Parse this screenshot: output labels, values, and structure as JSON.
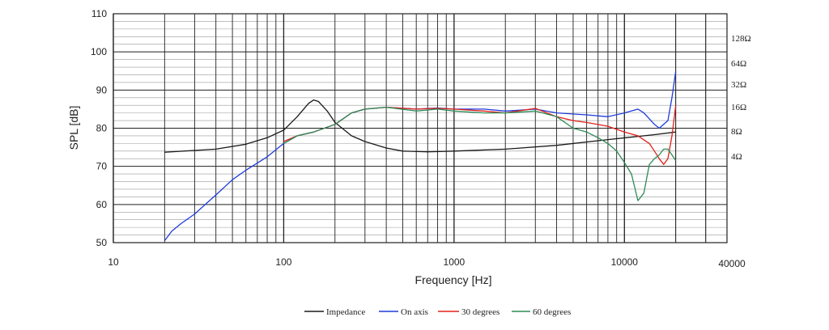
{
  "chart_data": {
    "type": "line",
    "xlabel": "Frequency [Hz]",
    "ylabel": "SPL [dB]",
    "xscale": "log",
    "xlim": [
      10,
      40000
    ],
    "ylim": [
      50,
      110
    ],
    "x_ticks": [
      "10",
      "100",
      "1000",
      "10000",
      "40000"
    ],
    "y_ticks": [
      "50",
      "60",
      "70",
      "80",
      "90",
      "100",
      "110"
    ],
    "right_axis_labels": [
      "128Ω",
      "64Ω",
      "32Ω",
      "16Ω",
      "8Ω",
      "4Ω"
    ],
    "grid": true,
    "legend_position": "bottom",
    "colors": {
      "Impedance": "#1a1a1a",
      "On axis": "#1f3cdb",
      "30 degrees": "#e0201a",
      "60 degrees": "#2e8b57"
    },
    "series": [
      {
        "name": "Impedance",
        "x": [
          20,
          40,
          60,
          80,
          100,
          120,
          140,
          150,
          160,
          180,
          200,
          250,
          300,
          400,
          500,
          700,
          1000,
          2000,
          4000,
          8000,
          15000,
          20000
        ],
        "y": [
          73.7,
          74.5,
          75.8,
          77.5,
          79.5,
          83,
          86.5,
          87.4,
          87,
          84.5,
          81.5,
          78,
          76.5,
          74.8,
          74,
          73.8,
          74,
          74.5,
          75.5,
          77,
          78.3,
          79
        ]
      },
      {
        "name": "On axis",
        "x": [
          20,
          22,
          25,
          30,
          40,
          50,
          60,
          80,
          100,
          120,
          150,
          200,
          250,
          300,
          400,
          600,
          800,
          1000,
          1500,
          2000,
          3000,
          4000,
          6000,
          8000,
          10000,
          12000,
          13000,
          15000,
          16000,
          18000,
          19000,
          20000
        ],
        "y": [
          50.5,
          53,
          55,
          57.5,
          62.5,
          66.5,
          69,
          72.5,
          76,
          78,
          79,
          81,
          84,
          85,
          85.5,
          85,
          85.3,
          85,
          85,
          84.5,
          85,
          84,
          83.5,
          83,
          84,
          85,
          84,
          81,
          80,
          82,
          88,
          95
        ]
      },
      {
        "name": "30 degrees",
        "x": [
          100,
          120,
          150,
          200,
          250,
          300,
          400,
          600,
          800,
          1000,
          1500,
          2000,
          3000,
          4000,
          5000,
          6000,
          8000,
          10000,
          12000,
          14000,
          15000,
          16000,
          17000,
          18000,
          19000,
          20000
        ],
        "y": [
          76.5,
          78,
          79,
          81,
          84,
          85,
          85.5,
          85,
          85.2,
          85,
          84.5,
          84,
          85.2,
          83,
          82,
          81.5,
          80.5,
          79,
          78,
          76,
          74,
          72,
          70.5,
          72,
          78,
          86
        ]
      },
      {
        "name": "60 degrees",
        "x": [
          100,
          120,
          150,
          200,
          250,
          300,
          400,
          600,
          800,
          1000,
          1500,
          2000,
          3000,
          4000,
          5000,
          6000,
          7000,
          8000,
          9000,
          10000,
          11000,
          12000,
          13000,
          14000,
          15000,
          16000,
          17000,
          18000,
          19000,
          20000
        ],
        "y": [
          76,
          78,
          79,
          81,
          84,
          85,
          85.5,
          84.5,
          85,
          84.5,
          84,
          84,
          84.5,
          83,
          80,
          79,
          77.5,
          76,
          74,
          71,
          68,
          61,
          63,
          70.5,
          72,
          73,
          74.5,
          74.5,
          73,
          71.5
        ]
      }
    ]
  }
}
